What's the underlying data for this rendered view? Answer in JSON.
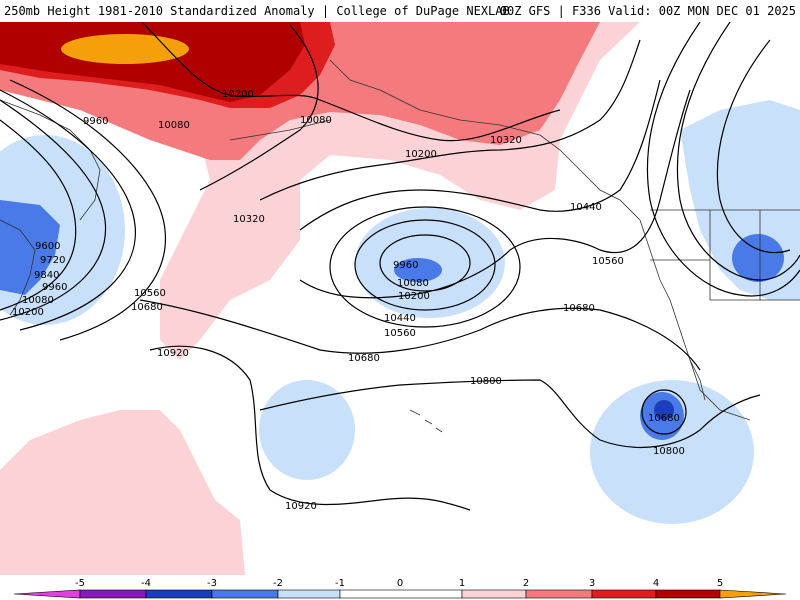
{
  "header": {
    "title": "250mb Height 1981-2010 Standardized Anomaly | College of DuPage NEXLAB",
    "run_info": "00Z GFS | F336 Valid: 00Z MON DEC 01 2025"
  },
  "colors": {
    "neg5": "#e040e0",
    "neg4": "#8a1ab8",
    "neg3": "#1a3fb8",
    "neg2": "#4a7ae8",
    "neg1": "#c8e0fa",
    "zero": "#ffffff",
    "pos1": "#fbd3d6",
    "pos2": "#f47a7e",
    "pos3": "#de1e1e",
    "pos4": "#b00000",
    "pos5": "#f5a00a"
  },
  "colorbar": {
    "labels": [
      "-5",
      "-4",
      "-3",
      "-2",
      "-1",
      "0",
      "1",
      "2",
      "3",
      "4",
      "5"
    ]
  },
  "contour_labels": [
    "10200",
    "9960",
    "10080",
    "10080",
    "10200",
    "10320",
    "10320",
    "9600",
    "9720",
    "9840",
    "9960",
    "10080",
    "10200",
    "10560",
    "10680",
    "10920",
    "9960",
    "10080",
    "10200",
    "10440",
    "10560",
    "10440",
    "10560",
    "10680",
    "10680",
    "10800",
    "10680",
    "10800",
    "10920"
  ]
}
